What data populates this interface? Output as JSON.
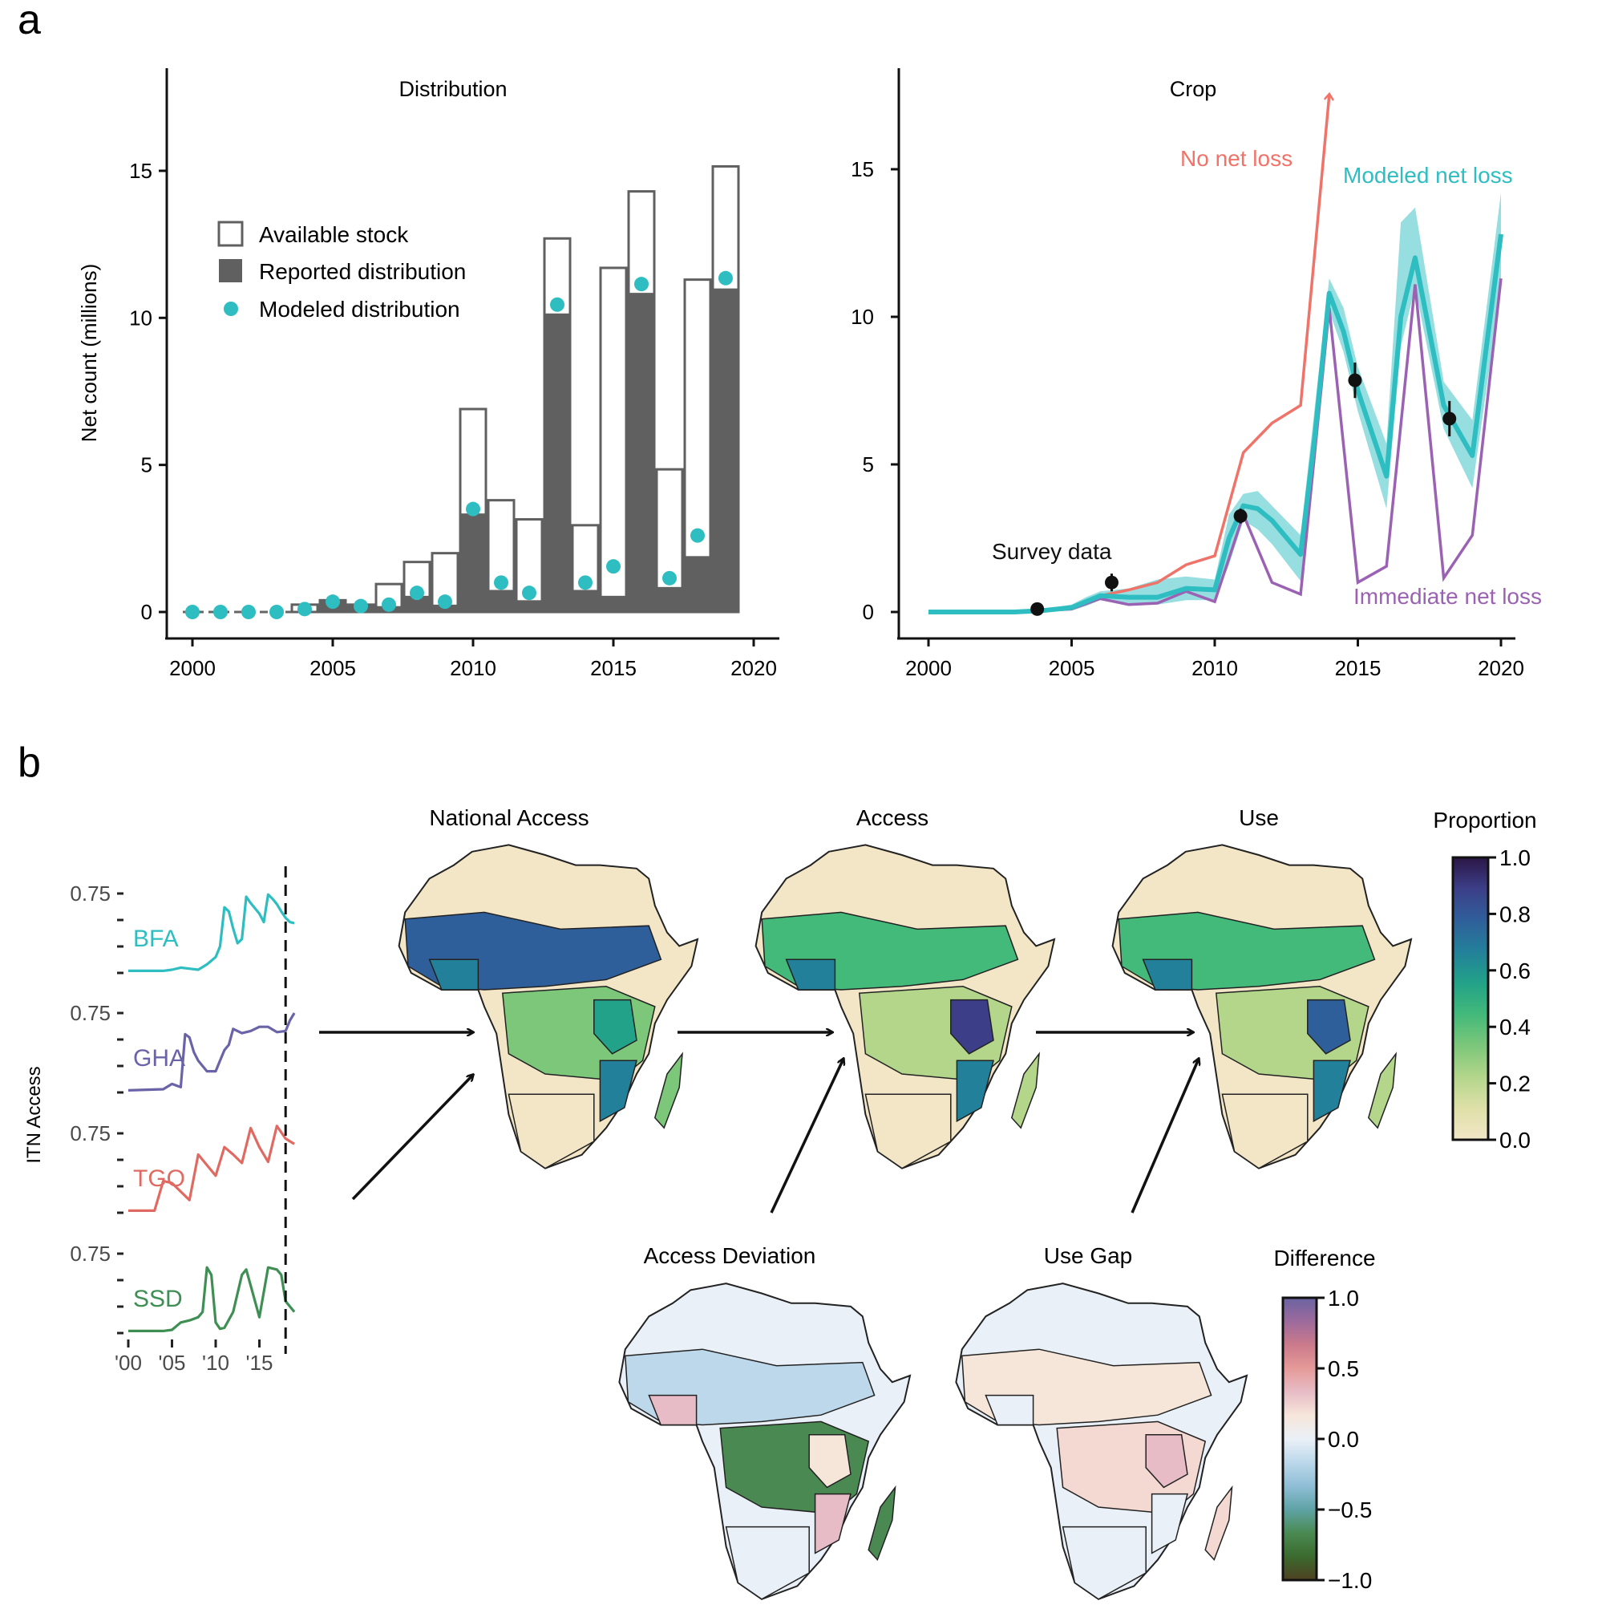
{
  "panels": {
    "a": "a",
    "b": "b"
  },
  "chart_data": [
    {
      "id": "distribution",
      "type": "bar",
      "title": "Distribution",
      "xlabel": "",
      "ylabel": "Net count (millions)",
      "xlim": [
        1999.5,
        2021
      ],
      "ylim": [
        -0.8,
        18.5
      ],
      "xticks": [
        2000,
        2005,
        2010,
        2015,
        2020
      ],
      "yticks": [
        0,
        5,
        10,
        15
      ],
      "legend_position": "upper-left",
      "legend": [
        "Available stock",
        "Reported distribution",
        "Modeled distribution"
      ],
      "x": [
        2000,
        2001,
        2002,
        2003,
        2004,
        2005,
        2006,
        2007,
        2008,
        2009,
        2010,
        2011,
        2012,
        2013,
        2014,
        2015,
        2016,
        2017,
        2018,
        2019
      ],
      "series": [
        {
          "name": "Available stock",
          "style": "outline",
          "color": "#606060",
          "values": [
            0,
            0,
            0,
            0,
            0.25,
            0.4,
            0.25,
            0.95,
            1.7,
            2.0,
            6.9,
            3.8,
            3.15,
            12.7,
            2.95,
            11.7,
            14.3,
            4.85,
            11.3,
            15.15
          ]
        },
        {
          "name": "Reported distribution",
          "style": "filled",
          "color": "#606060",
          "values": [
            0,
            0,
            0,
            0,
            0.0,
            0.4,
            0.25,
            0.2,
            0.55,
            0.25,
            3.35,
            0.75,
            0.4,
            10.15,
            0.75,
            0.55,
            10.85,
            0.85,
            1.9,
            11.0
          ]
        },
        {
          "name": "Modeled distribution",
          "style": "point",
          "color": "#2ebdc1",
          "values": [
            0,
            0,
            0,
            0,
            0.1,
            0.35,
            0.2,
            0.25,
            0.65,
            0.35,
            3.5,
            1.0,
            0.65,
            10.45,
            1.0,
            1.55,
            11.15,
            1.15,
            2.6,
            11.35
          ]
        }
      ]
    },
    {
      "id": "crop",
      "type": "line",
      "title": "Crop",
      "xlabel": "",
      "ylabel": "",
      "xlim": [
        1999.5,
        2021
      ],
      "ylim": [
        -0.8,
        18.5
      ],
      "xticks": [
        2000,
        2005,
        2010,
        2015,
        2020
      ],
      "yticks": [
        0,
        5,
        10,
        15
      ],
      "annotations": [
        {
          "text": "No net loss",
          "color": "#f07369"
        },
        {
          "text": "Modeled net loss",
          "color": "#2ebdc1"
        },
        {
          "text": "Immediate net loss",
          "color": "#9b62b4"
        },
        {
          "text": "Survey data",
          "color": "#111111"
        }
      ],
      "series": [
        {
          "name": "No net loss",
          "color": "#f07369",
          "arrow_at_end": true,
          "x": [
            2000,
            2003,
            2004,
            2005,
            2006,
            2007,
            2008,
            2009,
            2010,
            2011,
            2012,
            2013,
            2014
          ],
          "y": [
            0,
            0,
            0.05,
            0.1,
            0.55,
            0.75,
            1.0,
            1.6,
            1.9,
            5.4,
            6.4,
            7.0,
            17.5
          ]
        },
        {
          "name": "Modeled net loss",
          "color": "#2ebdc1",
          "x": [
            2000,
            2003,
            2004,
            2005,
            2005.5,
            2006,
            2007,
            2008,
            2009,
            2010,
            2010.5,
            2011,
            2011.5,
            2012,
            2013,
            2013.5,
            2014,
            2014.5,
            2015,
            2016,
            2016.5,
            2017,
            2018,
            2019,
            2020
          ],
          "y": [
            0,
            0,
            0.05,
            0.15,
            0.35,
            0.55,
            0.5,
            0.5,
            0.8,
            0.75,
            2.5,
            3.6,
            3.5,
            3.1,
            1.95,
            6.0,
            10.8,
            9.5,
            7.5,
            4.6,
            10.0,
            12.0,
            7.0,
            5.3,
            12.8
          ],
          "band_lower": [
            0,
            0,
            0,
            0.05,
            0.2,
            0.4,
            0.3,
            0.25,
            0.4,
            0.4,
            1.6,
            3.1,
            2.8,
            2.3,
            1.05,
            5.0,
            10.2,
            8.8,
            6.8,
            3.5,
            9.0,
            11.0,
            6.2,
            4.2,
            11.0
          ],
          "band_upper": [
            0,
            0,
            0.1,
            0.25,
            0.5,
            0.7,
            0.8,
            1.1,
            1.2,
            1.1,
            3.3,
            4.0,
            4.1,
            3.6,
            2.6,
            7.0,
            11.3,
            10.3,
            8.3,
            5.7,
            13.2,
            13.7,
            7.8,
            6.5,
            14.2
          ]
        },
        {
          "name": "Immediate net loss",
          "color": "#9b62b4",
          "x": [
            2000,
            2003,
            2005,
            2006,
            2007,
            2008,
            2009,
            2010,
            2011,
            2012,
            2013,
            2014,
            2015,
            2016,
            2017,
            2018,
            2019,
            2020
          ],
          "y": [
            0,
            0,
            0.1,
            0.45,
            0.25,
            0.3,
            0.7,
            0.35,
            3.3,
            1.0,
            0.6,
            10.3,
            1.0,
            1.55,
            11.1,
            1.15,
            2.6,
            11.3
          ]
        },
        {
          "name": "Survey data",
          "style": "errorbar",
          "color": "#111111",
          "x": [
            2003.8,
            2006.4,
            2010.9,
            2014.9,
            2018.2
          ],
          "y": [
            0.1,
            1.0,
            3.25,
            7.85,
            6.55
          ],
          "err": [
            0.1,
            0.3,
            0.25,
            0.6,
            0.6
          ]
        }
      ]
    },
    {
      "id": "itn-access-timeseries",
      "type": "line",
      "ylabel": "ITN Access",
      "xticks": [
        "'00",
        "'05",
        "'10",
        "'15"
      ],
      "ytick_label": "0.75",
      "marker_year": 2018,
      "series": [
        {
          "name": "BFA",
          "color": "#2ebdc1",
          "x": [
            2000,
            2004,
            2005,
            2006,
            2007,
            2008,
            2009,
            2010,
            2010.5,
            2011,
            2011.5,
            2012,
            2012.5,
            2013,
            2013.5,
            2014,
            2015,
            2015.5,
            2016,
            2016.5,
            2017,
            2017.5,
            2018,
            2018.5,
            2019
          ],
          "y": [
            0.02,
            0.02,
            0.03,
            0.05,
            0.04,
            0.03,
            0.08,
            0.15,
            0.25,
            0.62,
            0.58,
            0.42,
            0.28,
            0.32,
            0.72,
            0.66,
            0.56,
            0.48,
            0.74,
            0.7,
            0.65,
            0.58,
            0.52,
            0.48,
            0.47
          ]
        },
        {
          "name": "GHA",
          "color": "#6a63a8",
          "x": [
            2000,
            2004,
            2005,
            2006,
            2006.5,
            2007,
            2007.5,
            2008,
            2009,
            2010,
            2010.5,
            2011,
            2011.5,
            2012,
            2013,
            2014,
            2015,
            2016,
            2017,
            2018,
            2018.5,
            2019
          ],
          "y": [
            0.02,
            0.03,
            0.08,
            0.05,
            0.55,
            0.52,
            0.38,
            0.3,
            0.2,
            0.2,
            0.3,
            0.4,
            0.45,
            0.6,
            0.56,
            0.58,
            0.62,
            0.62,
            0.57,
            0.58,
            0.68,
            0.75
          ]
        },
        {
          "name": "TGO",
          "color": "#e06a62",
          "x": [
            2000,
            2003,
            2004,
            2005,
            2007,
            2008,
            2009,
            2010,
            2011,
            2012,
            2013,
            2014,
            2015,
            2016,
            2017,
            2018,
            2019
          ],
          "y": [
            0.02,
            0.02,
            0.3,
            0.28,
            0.12,
            0.55,
            0.45,
            0.35,
            0.62,
            0.55,
            0.47,
            0.8,
            0.62,
            0.48,
            0.82,
            0.7,
            0.65
          ]
        },
        {
          "name": "SSD",
          "color": "#3f8f55",
          "x": [
            2000,
            2004,
            2005,
            2006,
            2007,
            2008,
            2008.5,
            2009,
            2009.5,
            2010,
            2010.5,
            2011,
            2012,
            2013,
            2013.5,
            2014,
            2015,
            2016,
            2017,
            2017.5,
            2018,
            2019
          ],
          "y": [
            0.02,
            0.02,
            0.03,
            0.1,
            0.12,
            0.15,
            0.2,
            0.62,
            0.55,
            0.1,
            0.04,
            0.05,
            0.2,
            0.55,
            0.6,
            0.45,
            0.15,
            0.62,
            0.6,
            0.55,
            0.3,
            0.2
          ]
        }
      ]
    }
  ],
  "maps": {
    "national_access": "National Access",
    "access": "Access",
    "use": "Use",
    "access_deviation": "Access Deviation",
    "use_gap": "Use Gap"
  },
  "colorbars": {
    "proportion": {
      "title": "Proportion",
      "ticks": [
        "1.0",
        "0.8",
        "0.6",
        "0.4",
        "0.2",
        "0.0"
      ],
      "stops": [
        "#2b1646",
        "#3c3f88",
        "#2f5f9a",
        "#23809a",
        "#22a288",
        "#43b97a",
        "#7cc77a",
        "#b3d68b",
        "#dfe0a8",
        "#f2e6c7"
      ]
    },
    "difference": {
      "title": "Difference",
      "ticks": [
        "1.0",
        "0.5",
        "0.0",
        "−0.5",
        "−1.0"
      ],
      "stops": [
        "#6a63a2",
        "#9c6a9c",
        "#cb7a8b",
        "#e59a98",
        "#e7bcc6",
        "#f6e6da",
        "#eaf0f7",
        "#bcd8ea",
        "#8fbed6",
        "#5fa3a5",
        "#4a8a52",
        "#3b6a2e",
        "#4e4121"
      ]
    }
  }
}
